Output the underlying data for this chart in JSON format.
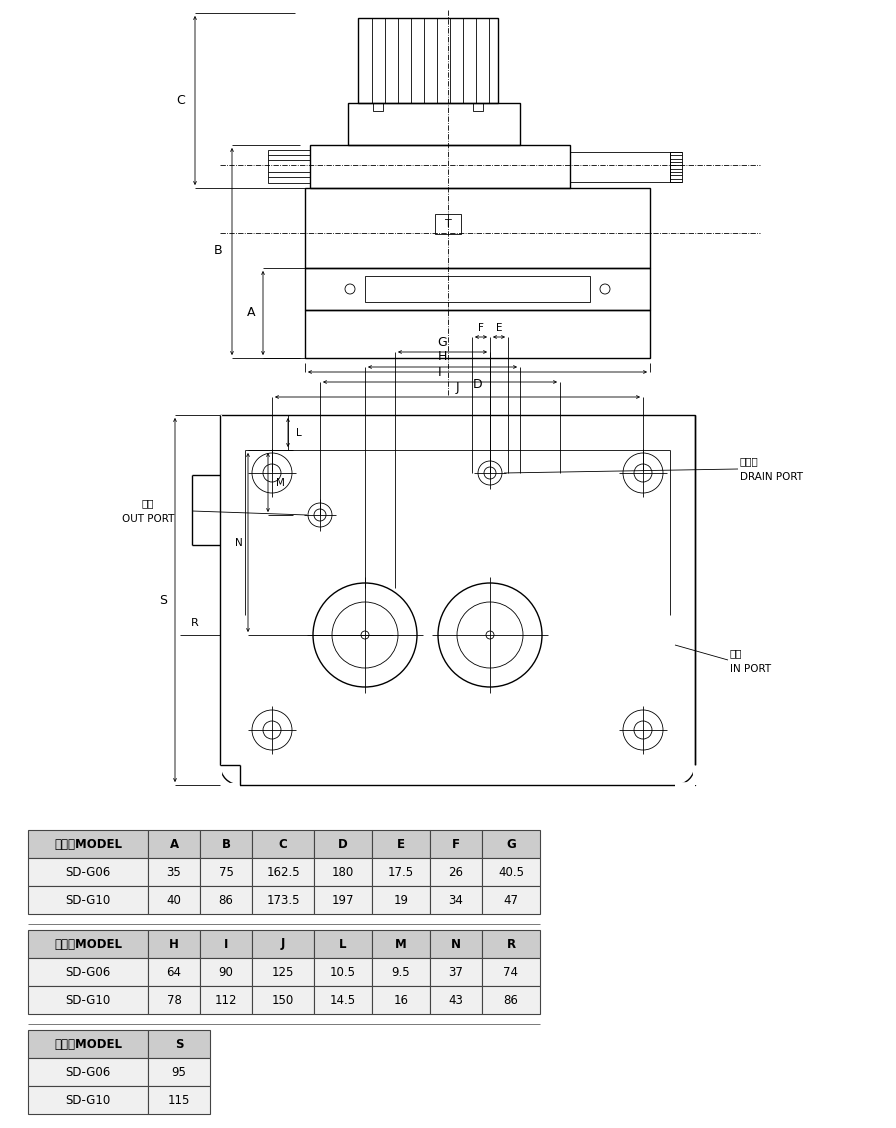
{
  "bg_color": "#ffffff",
  "line_color": "#000000",
  "lw_main": 1.0,
  "lw_thin": 0.6,
  "lw_dim": 0.6,
  "header_bg": "#cccccc",
  "row_bg": "#f0f0f0",
  "table_line_color": "#444444",
  "table1": {
    "header": [
      "型式　MODEL",
      "A",
      "B",
      "C",
      "D",
      "E",
      "F",
      "G"
    ],
    "rows": [
      [
        "SD-G06",
        "35",
        "75",
        "162.5",
        "180",
        "17.5",
        "26",
        "40.5"
      ],
      [
        "SD-G10",
        "40",
        "86",
        "173.5",
        "197",
        "19",
        "34",
        "47"
      ]
    ]
  },
  "table2": {
    "header": [
      "型式　MODEL",
      "H",
      "I",
      "J",
      "L",
      "M",
      "N",
      "R"
    ],
    "rows": [
      [
        "SD-G06",
        "64",
        "90",
        "125",
        "10.5",
        "9.5",
        "37",
        "74"
      ],
      [
        "SD-G10",
        "78",
        "112",
        "150",
        "14.5",
        "16",
        "43",
        "86"
      ]
    ]
  },
  "table3": {
    "header": [
      "型式　MODEL",
      "S"
    ],
    "rows": [
      [
        "SD-G06",
        "95"
      ],
      [
        "SD-G10",
        "115"
      ]
    ]
  }
}
